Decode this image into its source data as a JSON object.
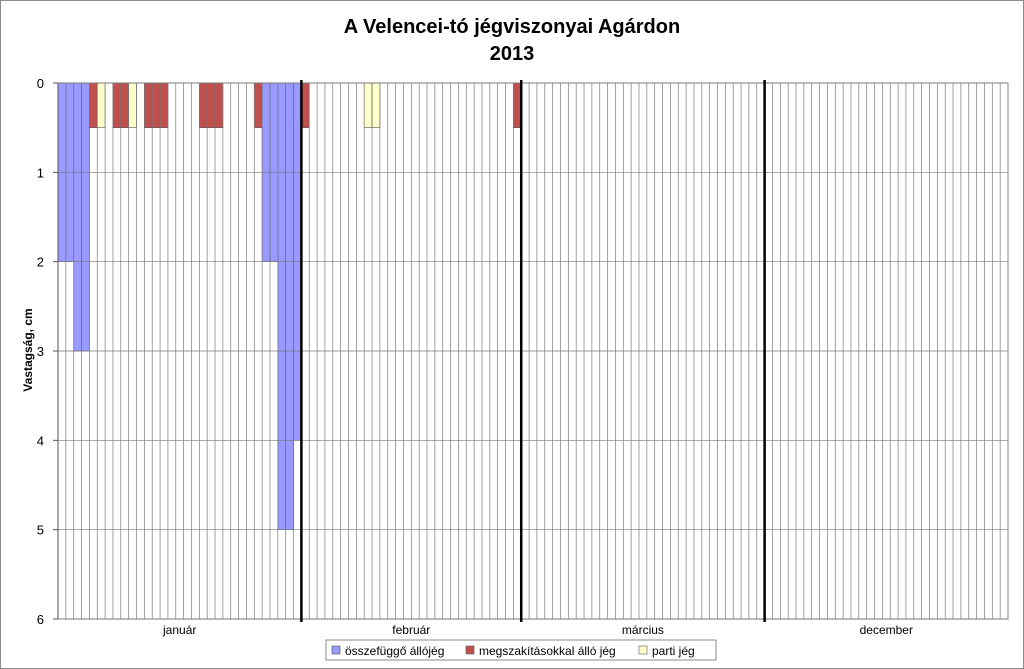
{
  "chart_data": {
    "type": "bar",
    "title": "A Velencei-tó jégviszonyai Agárdon",
    "subtitle": "2013",
    "ylabel": "Vastagság, cm",
    "ylim": [
      0,
      6
    ],
    "y_inverted": true,
    "y_ticks": [
      0,
      1,
      2,
      3,
      4,
      5,
      6
    ],
    "grid": true,
    "legend_position": "bottom",
    "months": [
      {
        "name": "január",
        "days": 31
      },
      {
        "name": "február",
        "days": 28
      },
      {
        "name": "március",
        "days": 31
      },
      {
        "name": "december",
        "days": 31
      }
    ],
    "series": [
      {
        "name": "összefüggő állójég",
        "color": "#9999ff",
        "values": [
          2,
          2,
          3,
          3,
          0,
          0,
          0,
          0,
          0,
          0,
          0,
          0,
          0,
          0,
          0,
          0,
          0,
          0,
          0,
          0,
          0,
          0,
          0,
          0,
          0,
          0,
          2,
          2,
          5,
          5,
          4,
          0,
          0,
          0,
          0,
          0,
          0,
          0,
          0,
          0,
          0,
          0,
          0,
          0,
          0,
          0,
          0,
          0,
          0,
          0,
          0,
          0,
          0,
          0,
          0,
          0,
          0,
          0,
          0,
          0,
          0,
          0,
          0,
          0,
          0,
          0,
          0,
          0,
          0,
          0,
          0,
          0,
          0,
          0,
          0,
          0,
          0,
          0,
          0,
          0,
          0,
          0,
          0,
          0,
          0,
          0,
          0,
          0,
          0,
          0,
          0,
          0,
          0,
          0,
          0,
          0,
          0,
          0,
          0,
          0,
          0,
          0,
          0,
          0,
          0,
          0,
          0,
          0,
          0,
          0,
          0,
          0,
          0,
          0,
          0,
          0,
          0,
          0,
          0,
          0,
          0
        ]
      },
      {
        "name": "megszakításokkal álló jég",
        "color": "#c0504d",
        "values": [
          0,
          0,
          0,
          0,
          0.5,
          0,
          0,
          0.5,
          0.5,
          0,
          0,
          0.5,
          0.5,
          0.5,
          0,
          0,
          0,
          0,
          0.5,
          0.5,
          0.5,
          0,
          0,
          0,
          0,
          0.5,
          0,
          0,
          0,
          0,
          0,
          0.5,
          0,
          0,
          0,
          0,
          0,
          0,
          0,
          0,
          0,
          0,
          0,
          0,
          0,
          0,
          0,
          0,
          0,
          0,
          0,
          0,
          0,
          0,
          0,
          0,
          0,
          0,
          0.5,
          0,
          0,
          0,
          0,
          0,
          0,
          0,
          0,
          0,
          0,
          0,
          0,
          0,
          0,
          0,
          0,
          0,
          0,
          0,
          0,
          0,
          0,
          0,
          0,
          0,
          0,
          0,
          0,
          0,
          0,
          0,
          0,
          0,
          0,
          0,
          0,
          0,
          0,
          0,
          0,
          0,
          0,
          0,
          0,
          0,
          0,
          0,
          0,
          0,
          0,
          0,
          0,
          0,
          0,
          0,
          0,
          0,
          0,
          0,
          0,
          0,
          0
        ]
      },
      {
        "name": "parti jég",
        "color": "#ffffcc",
        "values": [
          0,
          0,
          0,
          0,
          0,
          0.5,
          0,
          0,
          0,
          0.5,
          0,
          0,
          0,
          0,
          0,
          0,
          0,
          0,
          0,
          0,
          0,
          0,
          0,
          0,
          0,
          0,
          0,
          0,
          0,
          0,
          0,
          0,
          0,
          0,
          0,
          0,
          0,
          0,
          0,
          0.5,
          0.5,
          0,
          0,
          0,
          0,
          0,
          0,
          0,
          0,
          0,
          0,
          0,
          0,
          0,
          0,
          0,
          0,
          0,
          0,
          0,
          0,
          0,
          0,
          0,
          0,
          0,
          0,
          0,
          0,
          0,
          0,
          0,
          0,
          0,
          0,
          0,
          0,
          0,
          0,
          0,
          0,
          0,
          0,
          0,
          0,
          0,
          0,
          0,
          0,
          0,
          0,
          0,
          0,
          0,
          0,
          0,
          0,
          0,
          0,
          0,
          0,
          0,
          0,
          0,
          0,
          0,
          0,
          0,
          0,
          0,
          0,
          0,
          0,
          0,
          0,
          0,
          0,
          0,
          0,
          0,
          0
        ]
      }
    ]
  }
}
